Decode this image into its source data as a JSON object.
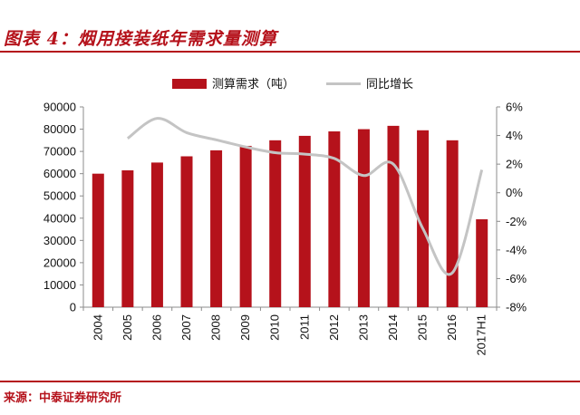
{
  "figure_title": "图表 4：烟用接装纸年需求量测算",
  "source": "来源：中泰证券研究所",
  "colors": {
    "bar": "#b5121b",
    "line": "#c4c4c4",
    "accent": "#b5121b",
    "axis": "#8c8c8c"
  },
  "chart_data": {
    "type": "bar+line",
    "title": "烟用接装纸年需求量测算",
    "categories": [
      "2004",
      "2005",
      "2006",
      "2007",
      "2008",
      "2009",
      "2010",
      "2011",
      "2012",
      "2013",
      "2014",
      "2015",
      "2016",
      "2017H1"
    ],
    "series": [
      {
        "name": "测算需求（吨）",
        "type": "bar",
        "axis": "left",
        "values": [
          60000,
          61500,
          65000,
          67800,
          70500,
          72500,
          75000,
          77000,
          79000,
          80000,
          81500,
          79500,
          75000,
          39500
        ]
      },
      {
        "name": "同比增长",
        "type": "line",
        "axis": "right",
        "unit": "%",
        "values": [
          null,
          3.8,
          5.2,
          4.2,
          3.7,
          3.2,
          2.8,
          2.7,
          2.4,
          1.2,
          2.0,
          -2.5,
          -5.6,
          1.6
        ]
      }
    ],
    "left_axis": {
      "min": 0,
      "max": 90000,
      "step": 10000,
      "tick_labels": [
        "0",
        "10000",
        "20000",
        "30000",
        "40000",
        "50000",
        "60000",
        "70000",
        "80000",
        "90000"
      ]
    },
    "right_axis": {
      "min": -8,
      "max": 6,
      "step": 2,
      "tick_labels": [
        "-8%",
        "-6%",
        "-4%",
        "-2%",
        "0%",
        "2%",
        "4%",
        "6%"
      ]
    },
    "legend": [
      "测算需求（吨）",
      "同比增长"
    ],
    "legend_position": "top",
    "grid": false
  }
}
